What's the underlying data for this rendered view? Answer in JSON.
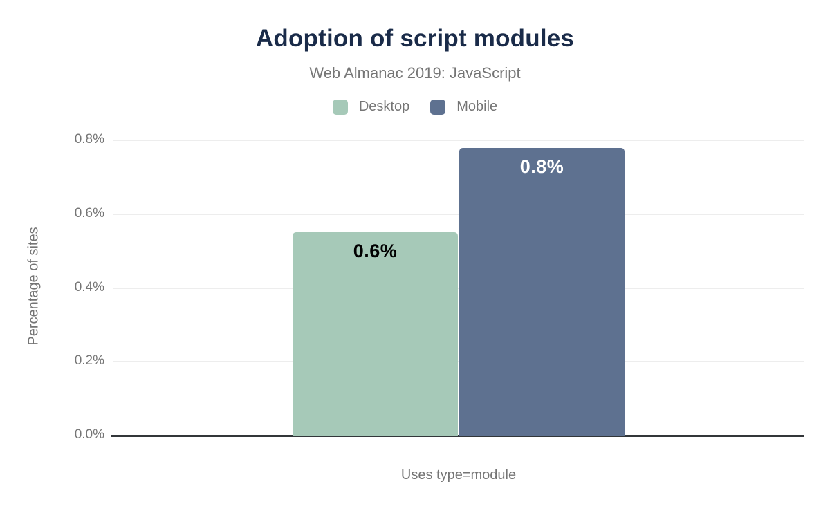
{
  "chart_data": {
    "type": "bar",
    "title": "Adoption of script modules",
    "subtitle": "Web Almanac 2019: JavaScript",
    "categories": [
      "Uses type=module"
    ],
    "series": [
      {
        "name": "Desktop",
        "values": [
          0.55
        ],
        "data_label": "0.6%",
        "color": "#a6c9b8",
        "label_color": "#000000"
      },
      {
        "name": "Mobile",
        "values": [
          0.78
        ],
        "data_label": "0.8%",
        "color": "#5e7190",
        "label_color": "#ffffff"
      }
    ],
    "xlabel": "Uses type=module",
    "ylabel": "Percentage of sites",
    "ylim": [
      0,
      0.8
    ],
    "yticks": [
      {
        "value": 0.0,
        "label": "0.0%"
      },
      {
        "value": 0.2,
        "label": "0.2%"
      },
      {
        "value": 0.4,
        "label": "0.4%"
      },
      {
        "value": 0.6,
        "label": "0.6%"
      },
      {
        "value": 0.8,
        "label": "0.8%"
      }
    ],
    "grid": true,
    "legend_position": "top",
    "colors": {
      "title": "#1a2b49",
      "muted_text": "#757575",
      "gridline": "#ededed",
      "baseline": "#323639",
      "background": "#ffffff"
    }
  }
}
